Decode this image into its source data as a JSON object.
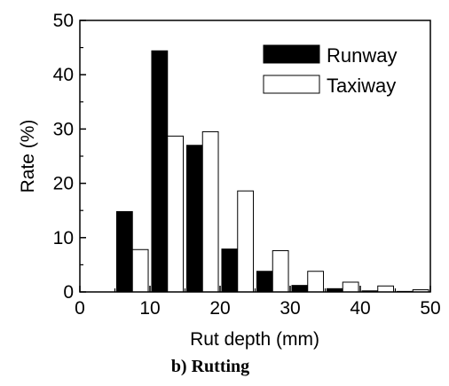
{
  "chart_data": {
    "type": "bar",
    "x": [
      7.5,
      12.5,
      17.5,
      22.5,
      27.5,
      32.5,
      37.5,
      42.5,
      47.5
    ],
    "series": [
      {
        "name": "Runway",
        "color": "#000000",
        "values": [
          14.8,
          44.4,
          27.0,
          7.9,
          3.8,
          1.2,
          0.6,
          0.2,
          0.1
        ]
      },
      {
        "name": "Taxiway",
        "color": "#ffffff",
        "values": [
          7.8,
          28.7,
          29.5,
          18.6,
          7.6,
          3.8,
          1.8,
          1.1,
          0.4
        ]
      }
    ],
    "xlabel": "Rut depth (mm)",
    "ylabel": "Rate (%)",
    "xlim": [
      0,
      50
    ],
    "ylim": [
      0,
      50
    ],
    "xticks": [
      "0",
      "10",
      "20",
      "30",
      "40",
      "50"
    ],
    "yticks": [
      "0",
      "10",
      "20",
      "30",
      "40",
      "50"
    ],
    "caption": "b) Rutting",
    "legend_position": "top-right",
    "grid": false
  }
}
